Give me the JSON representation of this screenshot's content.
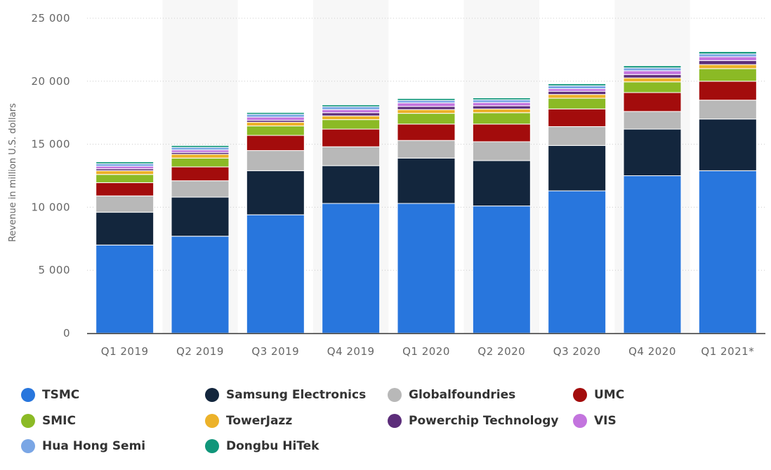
{
  "chart_data": {
    "type": "bar",
    "stacked": true,
    "title": "",
    "xlabel": "",
    "ylabel": "Revenue in million U.S. dollars",
    "ylim": [
      0,
      25000
    ],
    "yticks": [
      0,
      5000,
      10000,
      15000,
      20000,
      25000
    ],
    "ytick_labels": [
      "0",
      "5 000",
      "10 000",
      "15 000",
      "20 000",
      "25 000"
    ],
    "grid": true,
    "legend_position": "bottom",
    "categories": [
      "Q1 2019",
      "Q2 2019",
      "Q3 2019",
      "Q4 2019",
      "Q1 2020",
      "Q2 2020",
      "Q3 2020",
      "Q4 2020",
      "Q1 2021*"
    ],
    "series": [
      {
        "name": "TSMC",
        "color": "#2876dd",
        "values": [
          7000,
          7700,
          9400,
          10300,
          10300,
          10100,
          11300,
          12500,
          12900
        ]
      },
      {
        "name": "Samsung Electronics",
        "color": "#13263d",
        "values": [
          2600,
          3100,
          3500,
          3000,
          3600,
          3600,
          3600,
          3700,
          4100
        ]
      },
      {
        "name": "Globalfoundries",
        "color": "#b8b8b8",
        "values": [
          1300,
          1300,
          1600,
          1500,
          1400,
          1500,
          1500,
          1400,
          1500
        ]
      },
      {
        "name": "UMC",
        "color": "#a30c0c",
        "values": [
          1050,
          1100,
          1200,
          1400,
          1300,
          1400,
          1400,
          1500,
          1500
        ]
      },
      {
        "name": "SMIC",
        "color": "#8bba25",
        "values": [
          650,
          700,
          750,
          750,
          850,
          900,
          850,
          850,
          1000
        ]
      },
      {
        "name": "TowerJazz",
        "color": "#ecb22a",
        "values": [
          300,
          300,
          300,
          300,
          300,
          300,
          300,
          310,
          320
        ]
      },
      {
        "name": "Powerchip Technology",
        "color": "#5c2d7a",
        "values": [
          150,
          150,
          150,
          250,
          250,
          250,
          250,
          270,
          320
        ]
      },
      {
        "name": "VIS",
        "color": "#c374de",
        "values": [
          200,
          200,
          250,
          250,
          280,
          260,
          210,
          300,
          300
        ]
      },
      {
        "name": "Hua Hong Semi",
        "color": "#7aa6e5",
        "values": [
          200,
          200,
          230,
          230,
          200,
          220,
          230,
          230,
          230
        ]
      },
      {
        "name": "Dongbu HiTek",
        "color": "#10967a",
        "values": [
          150,
          150,
          140,
          150,
          150,
          150,
          160,
          170,
          180
        ]
      }
    ]
  }
}
